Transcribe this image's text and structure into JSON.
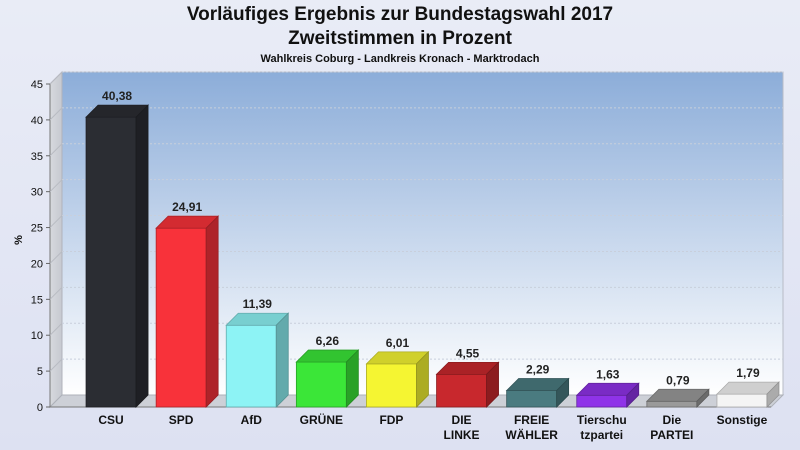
{
  "chart_data": {
    "type": "bar",
    "title": "Vorläufiges Ergebnis zur Bundestagswahl 2017",
    "subtitle": "Zweitstimmen in Prozent",
    "subtitle2": "Wahlkreis Coburg - Landkreis Kronach - Marktrodach",
    "ylabel": "%",
    "xlabel": "",
    "ylim": [
      0,
      45
    ],
    "yticks": [
      0,
      5,
      10,
      15,
      20,
      25,
      30,
      35,
      40,
      45
    ],
    "grid": true,
    "categories": [
      [
        "CSU"
      ],
      [
        "SPD"
      ],
      [
        "AfD"
      ],
      [
        "GRÜNE"
      ],
      [
        "FDP"
      ],
      [
        "DIE",
        "LINKE"
      ],
      [
        "FREIE",
        "WÄHLER"
      ],
      [
        "Tierschu",
        "tzpartei"
      ],
      [
        "Die",
        "PARTEI"
      ],
      [
        "Sonstige"
      ]
    ],
    "values": [
      40.38,
      24.91,
      11.39,
      6.26,
      6.01,
      4.55,
      2.29,
      1.63,
      0.79,
      1.79
    ],
    "value_labels": [
      "40,38",
      "24,91",
      "11,39",
      "6,26",
      "6,01",
      "4,55",
      "2,29",
      "1,63",
      "0,79",
      "1,79"
    ],
    "colors": [
      "#2b2d33",
      "#f8323a",
      "#8df3f5",
      "#3be638",
      "#f5f532",
      "#c8282d",
      "#4a7b80",
      "#8f33e8",
      "#9a9a9a",
      "#f4f4f4"
    ]
  }
}
